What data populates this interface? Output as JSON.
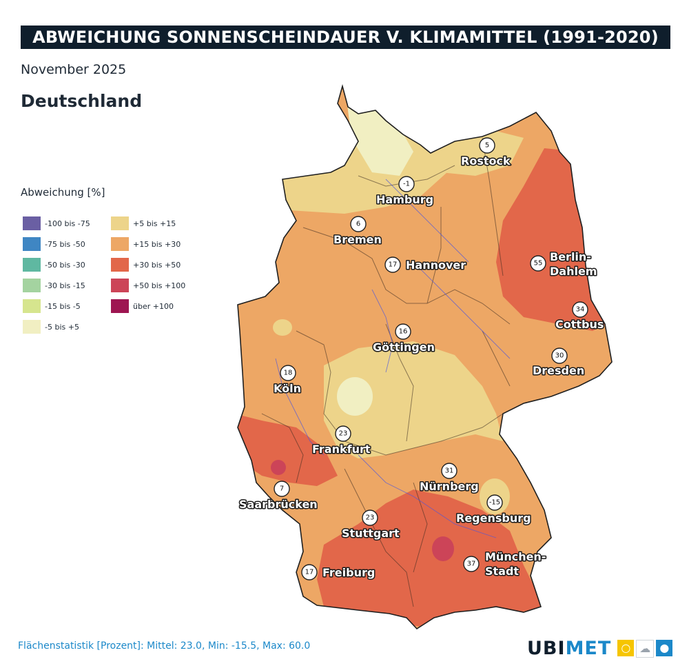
{
  "header": {
    "title": "ABWEICHUNG SONNENSCHEINDAUER V. KLIMAMITTEL (1991-2020)",
    "period": "November 2025",
    "region": "Deutschland"
  },
  "legend": {
    "title": "Abweichung [%]",
    "items": [
      {
        "label": "-100 bis -75",
        "color": "#6a5fa3"
      },
      {
        "label": "-75 bis -50",
        "color": "#3f86c3"
      },
      {
        "label": "-50 bis -30",
        "color": "#5fb8a1"
      },
      {
        "label": "-30 bis -15",
        "color": "#a4d3a0"
      },
      {
        "label": "-15 bis -5",
        "color": "#d6e58e"
      },
      {
        "label": "-5 bis +5",
        "color": "#f1efc2"
      },
      {
        "label": "+5 bis +15",
        "color": "#edd48a"
      },
      {
        "label": "+15 bis +30",
        "color": "#eda765"
      },
      {
        "label": "+30 bis +50",
        "color": "#e2674a"
      },
      {
        "label": "+50 bis +100",
        "color": "#cc4458"
      },
      {
        "label": "über +100",
        "color": "#9e1651"
      }
    ]
  },
  "cities": [
    {
      "name": "Rostock",
      "value": "5"
    },
    {
      "name": "Hamburg",
      "value": "-1"
    },
    {
      "name": "Bremen",
      "value": "6"
    },
    {
      "name": "Hannover",
      "value": "17"
    },
    {
      "name": "Berlin-",
      "name2": "Dahlem",
      "value": "55"
    },
    {
      "name": "Cottbus",
      "value": "34"
    },
    {
      "name": "Göttingen",
      "value": "16"
    },
    {
      "name": "Dresden",
      "value": "30"
    },
    {
      "name": "Köln",
      "value": "18"
    },
    {
      "name": "Frankfurt",
      "value": "23"
    },
    {
      "name": "Nürnberg",
      "value": "31"
    },
    {
      "name": "Saarbrücken",
      "value": "7"
    },
    {
      "name": "Regensburg",
      "value": "-15"
    },
    {
      "name": "Stuttgart",
      "value": "23"
    },
    {
      "name": "München-",
      "name2": "Stadt",
      "value": "37"
    },
    {
      "name": "Freiburg",
      "value": "17"
    }
  ],
  "footer": {
    "stats": "Flächenstatistik [Prozent]: Mittel: 23.0, Min: -15.5, Max: 60.0",
    "brand_part1": "UBI",
    "brand_part2": "MET"
  },
  "brand_icons": [
    "sun-icon",
    "cloud-icon",
    "drop-icon"
  ],
  "colors": {
    "brand_dark": "#0f1e2c",
    "brand_blue": "#1b88c9",
    "brand_yellow": "#f6c500"
  }
}
